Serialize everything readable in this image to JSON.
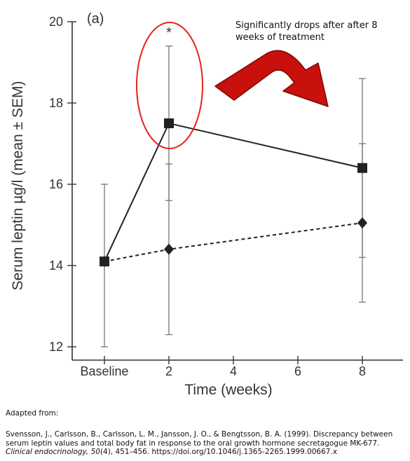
{
  "chart_data": {
    "type": "line",
    "panel_label": "(a)",
    "xlabel": "Time (weeks)",
    "ylabel": "Serum leptin µg/l (mean ± SEM)",
    "x_ticks": [
      {
        "x": 0,
        "label": "Baseline"
      },
      {
        "x": 2,
        "label": "2"
      },
      {
        "x": 4,
        "label": "4"
      },
      {
        "x": 6,
        "label": "6"
      },
      {
        "x": 8,
        "label": "8"
      }
    ],
    "y_ticks": [
      12,
      14,
      16,
      18,
      20
    ],
    "xlim": [
      -1,
      11
    ],
    "ylim": [
      12,
      20
    ],
    "grid": false,
    "series": [
      {
        "marker": "square",
        "line_style": "solid",
        "points": [
          {
            "x": 0,
            "y": 14.1,
            "err_low": 12.0,
            "err_high": 16.0
          },
          {
            "x": 2,
            "y": 17.5,
            "err_low": 15.6,
            "err_high": 19.4
          },
          {
            "x": 8,
            "y": 16.4,
            "err_low": 14.2,
            "err_high": 18.6
          }
        ]
      },
      {
        "marker": "diamond",
        "line_style": "dashed",
        "points": [
          {
            "x": 0,
            "y": 14.1,
            "err_low": 12.0,
            "err_high": 16.0
          },
          {
            "x": 2,
            "y": 14.4,
            "err_low": 12.3,
            "err_high": 16.5
          },
          {
            "x": 8,
            "y": 15.05,
            "err_low": 13.1,
            "err_high": 17.0
          }
        ]
      }
    ],
    "significance_marker": "*",
    "colors": {
      "series": "#222222",
      "highlight": "#e8231f",
      "arrow": "#c8100d",
      "arrow_outline": "#7a0a08"
    }
  },
  "annotation": {
    "text": "Significantly drops after after 8 weeks of treatment"
  },
  "caption": {
    "adapted": "Adapted from:",
    "authors": "Svensson, J., Carlsson, B., Carlsson, L. M., Jansson, J. O., & Bengtsson, B. A. (1999). Discrepancy between serum leptin values and total body fat in response to the oral growth hormone secretagogue MK-677. ",
    "journal": "Clinical endocrinology, 50",
    "issue_pages": "(4), 451–456. https://doi.org/10.1046/j.1365-2265.1999.00667.x"
  }
}
